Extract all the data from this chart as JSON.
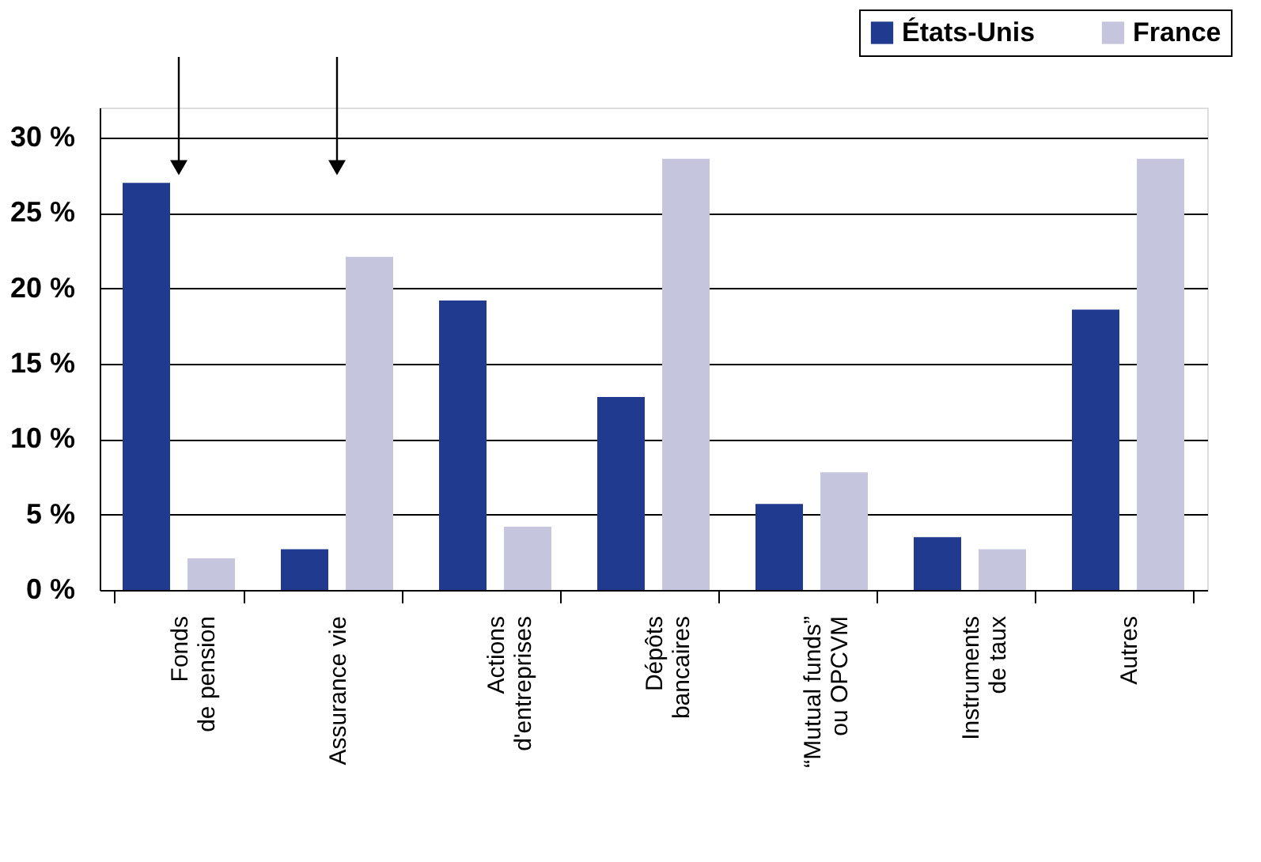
{
  "chart_data": {
    "type": "bar",
    "categories": [
      "Fonds\nde pension",
      "Assurance vie",
      "Actions\nd'entreprises",
      "Dépôts\nbancaires",
      "“Mutual funds”\nou OPCVM",
      "Instruments\nde taux",
      "Autres"
    ],
    "series": [
      {
        "name": "États-Unis",
        "color": "#1f3a8f",
        "values": [
          27,
          2.7,
          19.2,
          12.8,
          5.7,
          3.5,
          18.6
        ]
      },
      {
        "name": "France",
        "color": "#c5c5dd",
        "values": [
          2.1,
          22.1,
          4.2,
          28.6,
          7.8,
          2.7,
          28.6
        ]
      }
    ],
    "ylim": [
      0,
      32
    ],
    "yticks": [
      {
        "value": 0,
        "label": "0 %"
      },
      {
        "value": 5,
        "label": "5 %"
      },
      {
        "value": 10,
        "label": "10 %"
      },
      {
        "value": 15,
        "label": "15 %"
      },
      {
        "value": 20,
        "label": "20 %"
      },
      {
        "value": 25,
        "label": "25 %"
      },
      {
        "value": 30,
        "label": "30 %"
      }
    ],
    "grid": "y",
    "legend": "top right"
  }
}
